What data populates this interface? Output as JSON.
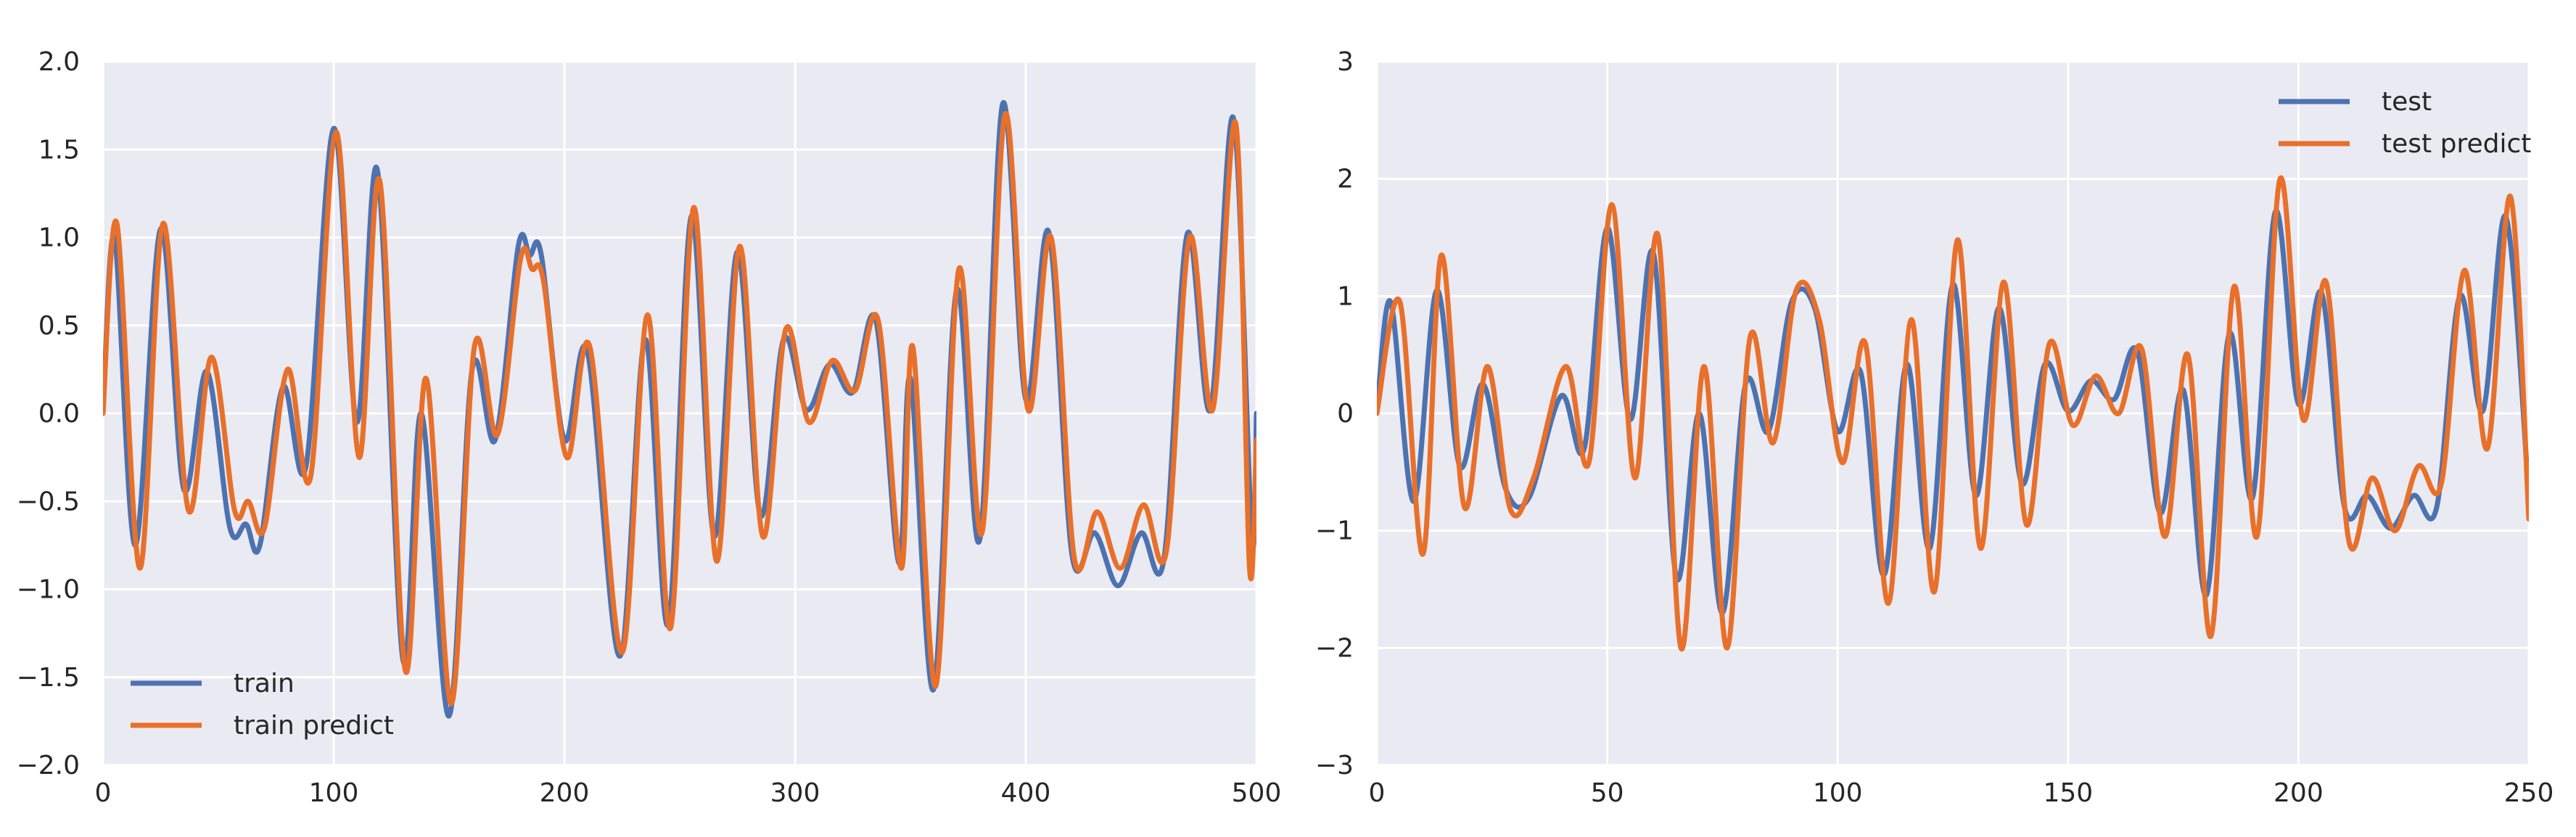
{
  "colors": {
    "blue": "#4c72b0",
    "orange": "#e8702a",
    "plot_bg": "#eaeaf2",
    "grid": "#ffffff"
  },
  "chart_data": [
    {
      "type": "line",
      "title": "",
      "xlabel": "",
      "ylabel": "",
      "xlim": [
        0,
        500
      ],
      "ylim": [
        -2.0,
        2.0
      ],
      "xticks": [
        0,
        100,
        200,
        300,
        400,
        500
      ],
      "xtick_labels": [
        "0",
        "100",
        "200",
        "300",
        "400",
        "500"
      ],
      "yticks": [
        -2.0,
        -1.5,
        -1.0,
        -0.5,
        0.0,
        0.5,
        1.0,
        1.5,
        2.0
      ],
      "ytick_labels": [
        "−2.0",
        "−1.5",
        "−1.0",
        "−0.5",
        "0.0",
        "0.5",
        "1.0",
        "1.5",
        "2.0"
      ],
      "grid": true,
      "legend_position": "lower-left",
      "series": [
        {
          "name": "train",
          "color": "#4c72b0",
          "x": [
            0,
            5,
            14,
            25,
            35,
            45,
            55,
            62,
            68,
            78,
            88,
            100,
            110,
            119,
            130,
            138,
            150,
            160,
            170,
            180,
            185,
            190,
            200,
            210,
            224,
            235,
            245,
            255,
            265,
            275,
            285,
            295,
            305,
            315,
            325,
            335,
            345,
            350,
            360,
            370,
            380,
            390,
            400,
            410,
            420,
            430,
            440,
            450,
            460,
            470,
            480,
            490,
            498,
            500
          ],
          "y": [
            0.0,
            1.0,
            -0.75,
            1.05,
            -0.43,
            0.24,
            -0.65,
            -0.63,
            -0.75,
            0.15,
            -0.3,
            1.62,
            -0.05,
            1.38,
            -1.4,
            0.0,
            -1.72,
            0.25,
            -0.15,
            0.95,
            0.9,
            0.9,
            -0.15,
            0.35,
            -1.38,
            0.42,
            -1.2,
            1.12,
            -0.7,
            0.92,
            -0.58,
            0.42,
            0.02,
            0.28,
            0.12,
            0.53,
            -0.85,
            0.2,
            -1.57,
            0.7,
            -0.72,
            1.76,
            0.08,
            1.03,
            -0.8,
            -0.68,
            -0.98,
            -0.68,
            -0.82,
            1.02,
            0.02,
            1.68,
            -0.7,
            0.0
          ]
        },
        {
          "name": "train predict",
          "color": "#e8702a",
          "x": [
            0,
            6,
            16,
            26,
            37,
            47,
            57,
            63,
            70,
            80,
            90,
            101,
            111,
            120,
            131,
            140,
            151,
            161,
            171,
            181,
            186,
            191,
            201,
            211,
            225,
            236,
            246,
            256,
            266,
            276,
            286,
            296,
            306,
            316,
            326,
            336,
            346,
            351,
            361,
            371,
            381,
            391,
            401,
            411,
            421,
            431,
            441,
            451,
            461,
            471,
            481,
            491,
            497,
            500
          ],
          "y": [
            0.0,
            1.08,
            -0.88,
            1.08,
            -0.55,
            0.32,
            -0.55,
            -0.5,
            -0.65,
            0.25,
            -0.36,
            1.6,
            -0.25,
            1.32,
            -1.46,
            0.2,
            -1.65,
            0.38,
            -0.12,
            0.88,
            0.82,
            0.75,
            -0.25,
            0.38,
            -1.36,
            0.56,
            -1.22,
            1.17,
            -0.84,
            0.95,
            -0.7,
            0.48,
            -0.05,
            0.3,
            0.13,
            0.53,
            -0.88,
            0.38,
            -1.55,
            0.82,
            -0.68,
            1.7,
            0.02,
            1.0,
            -0.82,
            -0.56,
            -0.88,
            -0.52,
            -0.78,
            1.0,
            0.02,
            1.65,
            -0.88,
            -0.15
          ]
        }
      ]
    },
    {
      "type": "line",
      "title": "",
      "xlabel": "",
      "ylabel": "",
      "xlim": [
        0,
        250
      ],
      "ylim": [
        -3,
        3
      ],
      "xticks": [
        0,
        50,
        100,
        150,
        200,
        250
      ],
      "xtick_labels": [
        "0",
        "50",
        "100",
        "150",
        "200",
        "250"
      ],
      "yticks": [
        -3,
        -2,
        -1,
        0,
        1,
        2,
        3
      ],
      "ytick_labels": [
        "−3",
        "−2",
        "−1",
        "0",
        "1",
        "2",
        "3"
      ],
      "grid": true,
      "legend_position": "upper-right",
      "series": [
        {
          "name": "test",
          "color": "#4c72b0",
          "x": [
            0,
            3,
            8,
            13,
            18,
            23,
            28,
            33,
            40,
            45,
            50,
            55,
            60,
            65,
            70,
            75,
            80,
            85,
            90,
            95,
            100,
            105,
            110,
            115,
            120,
            125,
            130,
            135,
            140,
            145,
            150,
            155,
            160,
            165,
            170,
            175,
            180,
            185,
            190,
            195,
            200,
            205,
            210,
            215,
            220,
            225,
            230,
            235,
            240,
            245,
            250
          ],
          "y": [
            0.0,
            0.95,
            -0.75,
            1.05,
            -0.45,
            0.25,
            -0.65,
            -0.72,
            0.15,
            -0.3,
            1.58,
            -0.05,
            1.37,
            -1.4,
            0.0,
            -1.7,
            0.25,
            -0.15,
            0.95,
            0.9,
            -0.15,
            0.35,
            -1.38,
            0.42,
            -1.15,
            1.1,
            -0.7,
            0.9,
            -0.6,
            0.42,
            0.02,
            0.28,
            0.12,
            0.53,
            -0.85,
            0.2,
            -1.55,
            0.68,
            -0.72,
            1.72,
            0.08,
            1.03,
            -0.8,
            -0.7,
            -0.98,
            -0.7,
            -0.8,
            1.0,
            0.02,
            1.68,
            -0.7
          ]
        },
        {
          "name": "test predict",
          "color": "#e8702a",
          "x": [
            0,
            5,
            10,
            14,
            19,
            24,
            29,
            34,
            41,
            46,
            51,
            56,
            61,
            66,
            71,
            76,
            81,
            86,
            91,
            96,
            101,
            106,
            111,
            116,
            121,
            126,
            131,
            136,
            141,
            146,
            151,
            156,
            161,
            166,
            171,
            176,
            181,
            186,
            191,
            196,
            201,
            206,
            211,
            216,
            221,
            226,
            231,
            236,
            241,
            246,
            250
          ],
          "y": [
            0.0,
            0.95,
            -1.2,
            1.35,
            -0.8,
            0.4,
            -0.82,
            -0.55,
            0.4,
            -0.42,
            1.78,
            -0.55,
            1.52,
            -2.0,
            0.4,
            -2.0,
            0.65,
            -0.25,
            1.05,
            0.8,
            -0.42,
            0.6,
            -1.62,
            0.8,
            -1.52,
            1.48,
            -1.15,
            1.12,
            -0.95,
            0.6,
            -0.1,
            0.32,
            0.0,
            0.55,
            -1.05,
            0.5,
            -1.9,
            1.08,
            -1.05,
            2.0,
            -0.05,
            1.12,
            -1.1,
            -0.55,
            -1.0,
            -0.45,
            -0.6,
            1.22,
            -0.3,
            1.85,
            -0.9
          ]
        }
      ]
    }
  ]
}
